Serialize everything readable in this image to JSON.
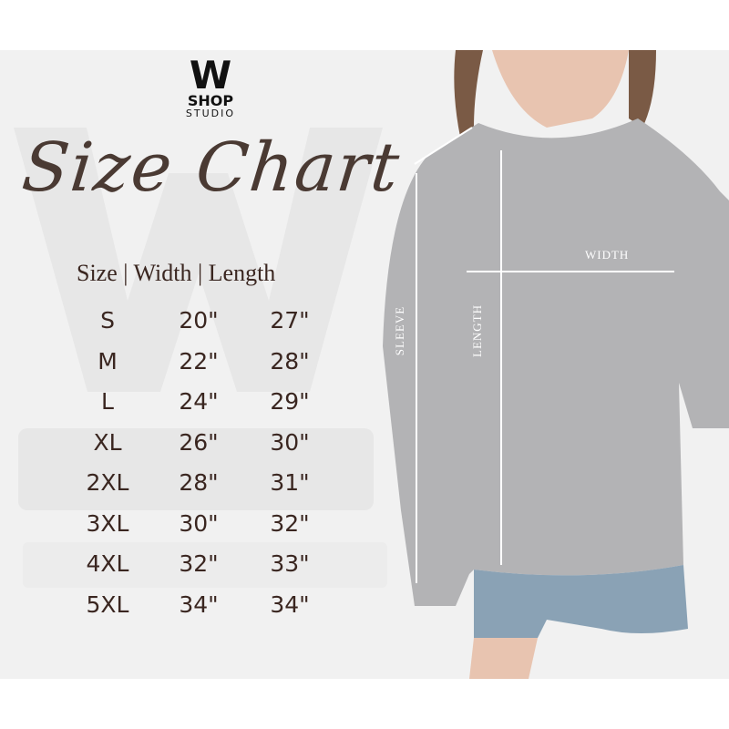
{
  "brand": {
    "mark": "W",
    "name": "SHOP",
    "sub": "STUDIO"
  },
  "title": "Size Chart",
  "table": {
    "header": "Size | Width | Length",
    "rows": [
      {
        "size": "S",
        "width": "20\"",
        "length": "27\""
      },
      {
        "size": "M",
        "width": "22\"",
        "length": "28\""
      },
      {
        "size": "L",
        "width": "24\"",
        "length": "29\""
      },
      {
        "size": "XL",
        "width": "26\"",
        "length": "30\""
      },
      {
        "size": "2XL",
        "width": "28\"",
        "length": "31\""
      },
      {
        "size": "3XL",
        "width": "30\"",
        "length": "32\""
      },
      {
        "size": "4XL",
        "width": "32\"",
        "length": "33\""
      },
      {
        "size": "5XL",
        "width": "34\"",
        "length": "34\""
      }
    ]
  },
  "measure_labels": {
    "width": "WIDTH",
    "length": "LENGTH",
    "sleeve": "SLEEVE"
  },
  "colors": {
    "text": "#3a2620",
    "background": "#f1f1f1",
    "garment": "#b3b3b5"
  }
}
